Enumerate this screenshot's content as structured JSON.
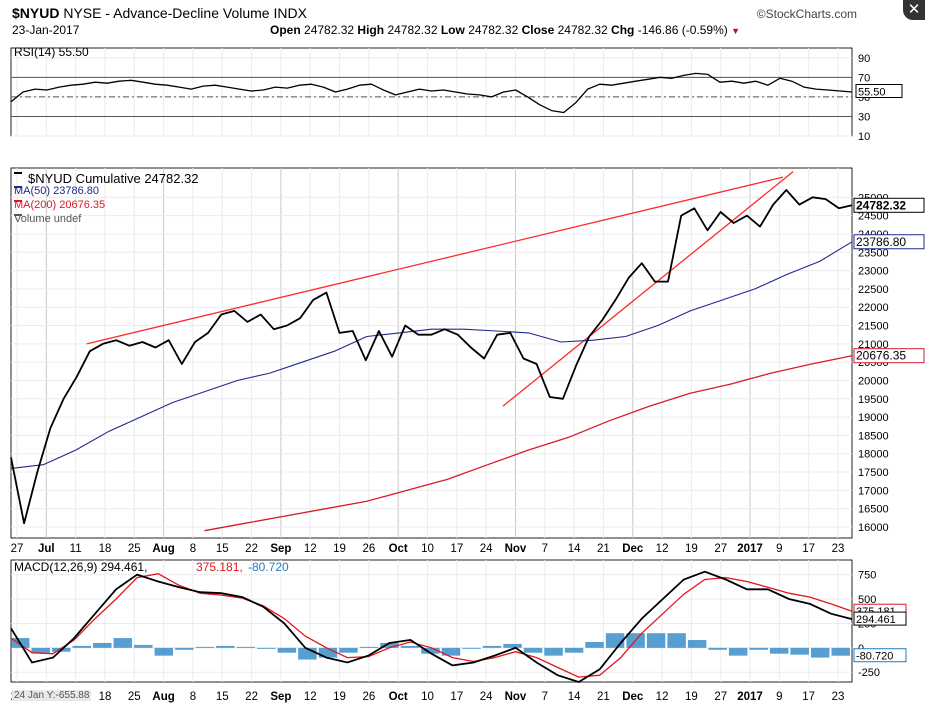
{
  "header": {
    "symbol": "$NYUD",
    "description": "NYSE - Advance-Decline Volume INDX",
    "date": "23-Jan-2017",
    "open_label": "Open",
    "open": "24782.32",
    "high_label": "High",
    "high": "24782.32",
    "low_label": "Low",
    "low": "24782.32",
    "close_label": "Close",
    "close": "24782.32",
    "chg_label": "Chg",
    "chg": "-146.86 (-0.59%)",
    "brand": "©StockCharts.com",
    "close_button": "✕"
  },
  "footer_note": "24 Jan Y:-655.88",
  "x_axis_labels": [
    "27",
    "Jul",
    "11",
    "18",
    "25",
    "Aug",
    "8",
    "15",
    "22",
    "Sep",
    "12",
    "19",
    "26",
    "Oct",
    "10",
    "17",
    "24",
    "Nov",
    "7",
    "14",
    "21",
    "Dec",
    "12",
    "19",
    "27",
    "2017",
    "9",
    "17",
    "23"
  ],
  "chart_data": [
    {
      "type": "line",
      "panel": "RSI",
      "legend": "RSI(14) 55.50",
      "ylim": [
        10,
        100
      ],
      "ticks": [
        90,
        70,
        50,
        30,
        10
      ],
      "reference_lines": [
        70,
        50,
        30
      ],
      "last_value_label": "55.50",
      "series": [
        {
          "name": "RSI(14)",
          "color": "#000000",
          "values": [
            45,
            55,
            58,
            57,
            60,
            62,
            63,
            65,
            64,
            66,
            67,
            65,
            63,
            62,
            60,
            58,
            61,
            62,
            60,
            58,
            56,
            57,
            60,
            59,
            62,
            63,
            60,
            55,
            58,
            62,
            63,
            57,
            52,
            55,
            58,
            56,
            57,
            55,
            53,
            52,
            50,
            55,
            57,
            50,
            42,
            36,
            34,
            44,
            58,
            63,
            62,
            64,
            66,
            68,
            70,
            69,
            72,
            74,
            73,
            65,
            66,
            64,
            66,
            62,
            69,
            66,
            60,
            58,
            57,
            56,
            55
          ]
        }
      ]
    },
    {
      "type": "line",
      "panel": "Price",
      "legend": [
        "$NYUD Cumulative 24782.32",
        "MA(50) 23786.80",
        "MA(200) 20676.35",
        "Volume undef"
      ],
      "ylim": [
        15700,
        25800
      ],
      "ticks": [
        25000,
        24500,
        24000,
        23500,
        23000,
        22500,
        22000,
        21500,
        21000,
        20500,
        20000,
        19500,
        19000,
        18500,
        18000,
        17500,
        17000,
        16500,
        16000
      ],
      "last_value_labels": {
        "cumulative": "24782.32",
        "ma50": "23786.80",
        "ma200": "20676.35"
      },
      "series": [
        {
          "name": "$NYUD Cumulative",
          "color": "#000000",
          "values": [
            17900,
            16100,
            17500,
            18700,
            19500,
            20100,
            20800,
            21000,
            21100,
            20950,
            21050,
            20900,
            21100,
            20450,
            21050,
            21300,
            21800,
            21900,
            21600,
            21800,
            21400,
            21500,
            21700,
            22200,
            22400,
            21300,
            21350,
            20550,
            21350,
            20650,
            21500,
            21250,
            21250,
            21400,
            21250,
            20900,
            20600,
            21250,
            21300,
            20600,
            20450,
            19550,
            19500,
            20400,
            21200,
            21650,
            22200,
            22800,
            23200,
            22700,
            22700,
            24500,
            24700,
            24100,
            24600,
            24300,
            24500,
            24200,
            24800,
            25200,
            24800,
            25000,
            24950,
            24700,
            24782
          ]
        },
        {
          "name": "MA(50)",
          "color": "#1f2a8c",
          "values": [
            17600,
            17700,
            18100,
            18600,
            19000,
            19400,
            19700,
            20000,
            20200,
            20500,
            20800,
            21200,
            21300,
            21400,
            21400,
            21350,
            21300,
            21050,
            21100,
            21200,
            21500,
            21900,
            22200,
            22500,
            22900,
            23250,
            23786.8
          ]
        },
        {
          "name": "MA(200)",
          "color": "#d81b2b",
          "values": [
            15900,
            16100,
            16300,
            16500,
            16700,
            17000,
            17300,
            17700,
            18100,
            18450,
            18900,
            19300,
            19650,
            19900,
            20200,
            20450,
            20676.35
          ]
        }
      ],
      "trendlines": [
        {
          "color": "#ff2a2a",
          "from": [
            3,
            21000
          ],
          "to": [
            30.6,
            25550
          ]
        },
        {
          "color": "#ff2a2a",
          "from": [
            19.5,
            19300
          ],
          "to": [
            31,
            25700
          ]
        }
      ]
    },
    {
      "type": "line",
      "panel": "MACD",
      "legend": "MACD(12,26,9) 294.461, 375.181, -80.720",
      "legend_parts": {
        "label": "MACD(12,26,9)",
        "macd": "294.461",
        "signal": "375.181",
        "hist": "-80.720"
      },
      "ylim": [
        -350,
        900
      ],
      "ticks": [
        750,
        500,
        250,
        0,
        -250
      ],
      "last_value_labels": {
        "signal": "375.181",
        "macd": "294.461",
        "hist": "-80.720"
      },
      "series": [
        {
          "name": "MACD",
          "color": "#000000",
          "values": [
            200,
            -150,
            -100,
            100,
            350,
            600,
            750,
            680,
            620,
            570,
            560,
            520,
            420,
            250,
            0,
            -100,
            -150,
            -80,
            50,
            80,
            -60,
            -180,
            -150,
            -80,
            0,
            -150,
            -280,
            -350,
            -220,
            50,
            300,
            500,
            700,
            780,
            700,
            600,
            600,
            500,
            450,
            350,
            294.461
          ]
        },
        {
          "name": "Signal",
          "color": "#e0161e",
          "values": [
            100,
            -50,
            -60,
            80,
            300,
            500,
            720,
            760,
            640,
            560,
            540,
            510,
            430,
            300,
            120,
            0,
            -100,
            -90,
            0,
            60,
            0,
            -100,
            -140,
            -100,
            -40,
            -100,
            -200,
            -300,
            -280,
            -100,
            150,
            350,
            550,
            700,
            720,
            680,
            620,
            560,
            520,
            450,
            375.181
          ]
        },
        {
          "name": "Histogram",
          "color": "#1f7fc0",
          "values": [
            100,
            -50,
            -40,
            20,
            50,
            100,
            30,
            -80,
            -20,
            10,
            20,
            10,
            -10,
            -50,
            -120,
            -100,
            -50,
            10,
            50,
            20,
            -60,
            -80,
            -10,
            20,
            40,
            -50,
            -80,
            -50,
            60,
            150,
            150,
            150,
            150,
            80,
            -20,
            -80,
            -20,
            -60,
            -70,
            -100,
            -80.72
          ]
        }
      ]
    }
  ]
}
